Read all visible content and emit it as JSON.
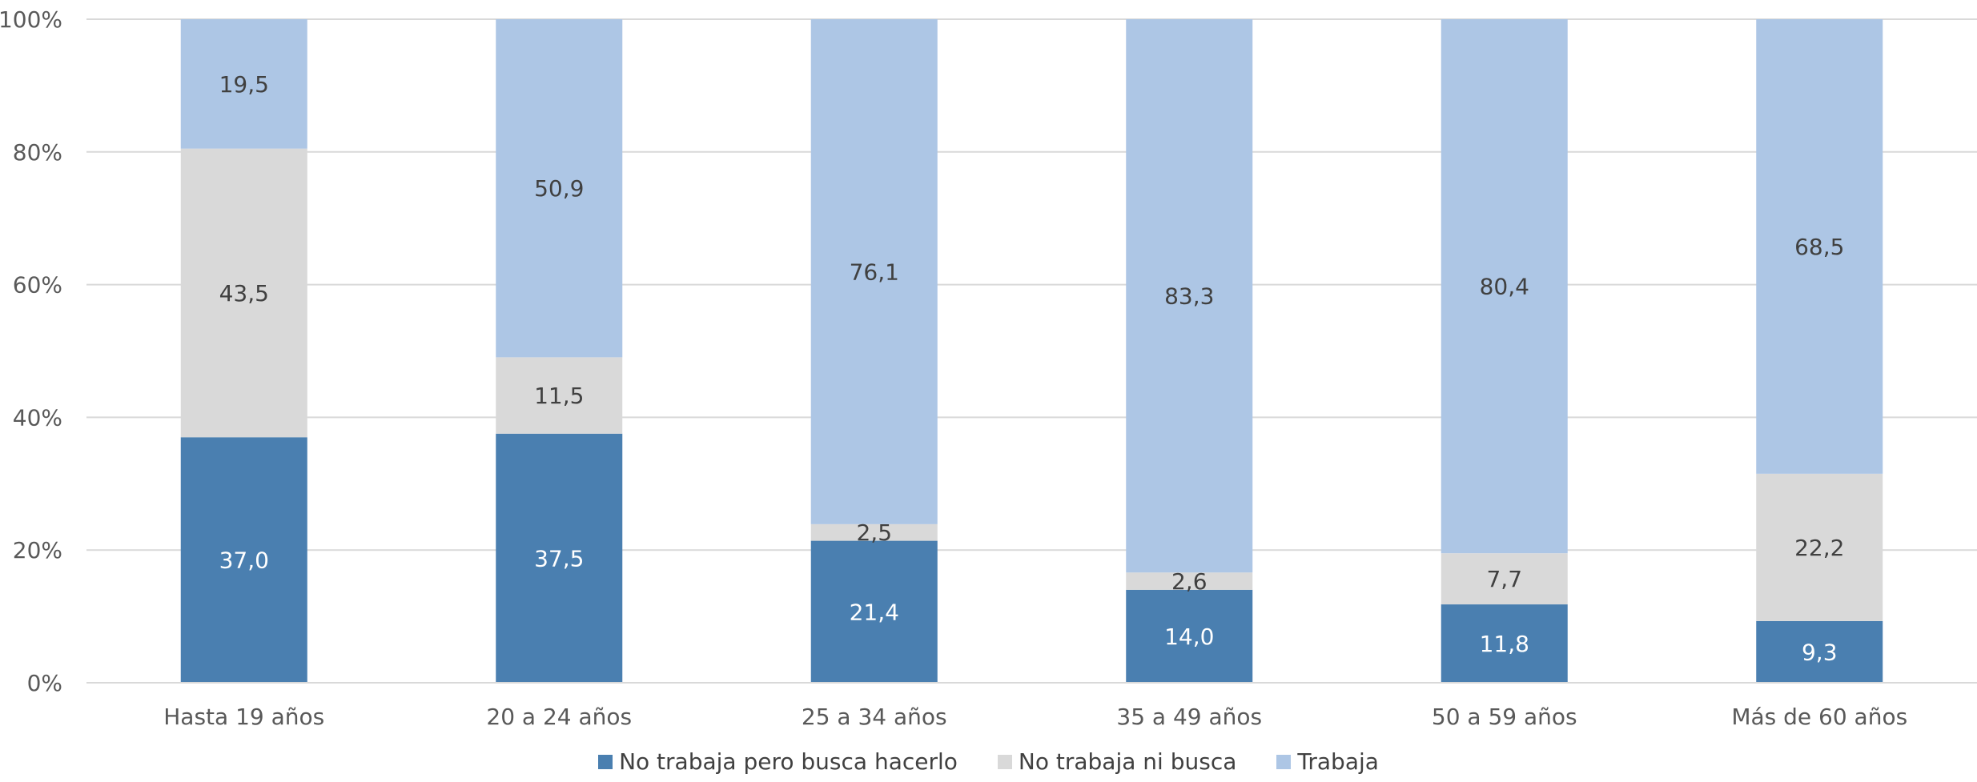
{
  "chart_data": {
    "type": "bar",
    "stacked": true,
    "percent_stacked": true,
    "categories": [
      "Hasta 19 años",
      "20 a 24 años",
      "25 a 34 años",
      "35 a 49 años",
      "50 a 59 años",
      "Más de 60 años"
    ],
    "series": [
      {
        "name": "No trabaja pero busca hacerlo",
        "values": [
          37.0,
          37.5,
          21.4,
          14.0,
          11.8,
          9.3
        ],
        "labels": [
          "37,0",
          "37,5",
          "21,4",
          "14,0",
          "11,8",
          "9,3"
        ],
        "color": "#4a7fb0",
        "label_color": "#ffffff"
      },
      {
        "name": "No trabaja ni busca",
        "values": [
          43.5,
          11.5,
          2.5,
          2.6,
          7.7,
          22.2
        ],
        "labels": [
          "43,5",
          "11,5",
          "2,5",
          "2,6",
          "7,7",
          "22,2"
        ],
        "color": "#d9d9d9",
        "label_color": "#404040"
      },
      {
        "name": "Trabaja",
        "values": [
          19.5,
          50.9,
          76.1,
          83.3,
          80.4,
          68.5
        ],
        "labels": [
          "19,5",
          "50,9",
          "76,1",
          "83,3",
          "80,4",
          "68,5"
        ],
        "color": "#adc6e5",
        "label_color": "#404040"
      }
    ],
    "y_ticks": [
      "0%",
      "20%",
      "40%",
      "60%",
      "80%",
      "100%"
    ],
    "ylim": [
      0,
      100
    ],
    "grid": true,
    "legend_position": "bottom"
  }
}
